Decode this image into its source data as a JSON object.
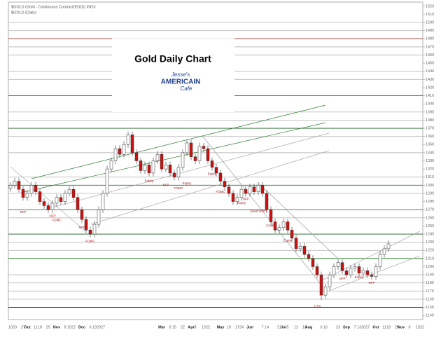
{
  "chart_data": {
    "type": "candlestick",
    "title": "Gold Daily Chart",
    "header": [
      "$GOLD (Gold - Continuous Contract(EOD)) INDX",
      "$GOLD (Daily)"
    ],
    "logo": [
      "Jesse's",
      "AMERICAIN",
      "Cafe"
    ],
    "up_color": "#ffffff",
    "down_color": "#cc1111",
    "outline_color": "#333333",
    "annotation_color": "#aa1111",
    "categories": [
      "10",
      "20",
      null,
      "27",
      "Oct",
      null,
      "11",
      "18",
      null,
      "25",
      null,
      "Nov",
      null,
      "8",
      "15",
      "22",
      null,
      "Dec",
      null,
      "6",
      "13",
      "20",
      "27",
      null,
      null,
      null,
      null,
      null,
      null,
      null,
      null,
      null,
      null,
      null,
      null,
      null,
      "Mar",
      null,
      "8",
      "15",
      null,
      "22",
      null,
      "Apr",
      "8",
      null,
      "15",
      "22",
      null,
      null,
      "May",
      null,
      "10",
      null,
      "17",
      "24",
      null,
      "Jun",
      null,
      null,
      "7",
      "14",
      null,
      null,
      "21",
      "Jul",
      "5",
      null,
      "12",
      null,
      "19",
      "Aug",
      null,
      null,
      "6",
      "16",
      null,
      null,
      "23",
      null,
      "Sep",
      null,
      "7",
      "13",
      "20",
      "27",
      null,
      "Oct",
      null,
      "11",
      "18",
      null,
      "25",
      "Nov",
      null,
      "8",
      null,
      "15",
      "22"
    ],
    "open": [
      1296,
      1300,
      1305,
      1295,
      1285,
      1290,
      1300,
      1292,
      1280,
      1275,
      1270,
      1278,
      1285,
      1280,
      1290,
      1295,
      1285,
      1270,
      1258,
      1245,
      1240,
      1252,
      1270,
      1290,
      1320,
      1330,
      1345,
      1338,
      1350,
      1362,
      1340,
      1330,
      1318,
      1325,
      1315,
      1330,
      1338,
      1320,
      1325,
      1315,
      1310,
      1322,
      1340,
      1352,
      1335,
      1330,
      1348,
      1345,
      1330,
      1322,
      1315,
      1305,
      1298,
      1290,
      1280,
      1285,
      1295,
      1290,
      1298,
      1292,
      1300,
      1290,
      1270,
      1255,
      1245,
      1248,
      1255,
      1245,
      1235,
      1222,
      1225,
      1215,
      1210,
      1200,
      1190,
      1165,
      1175,
      1190,
      1200,
      1205,
      1195,
      1190,
      1198,
      1200,
      1192,
      1195,
      1190,
      1188,
      1200,
      1215,
      1222,
      null,
      null,
      null,
      null,
      null,
      null,
      null,
      null
    ],
    "high": [
      1304,
      1309,
      1309,
      1299,
      1294,
      1304,
      1304,
      1296,
      1284,
      1279,
      1282,
      1289,
      1289,
      1294,
      1299,
      1299,
      1289,
      1274,
      1262,
      1249,
      1256,
      1274,
      1294,
      1324,
      1334,
      1349,
      1349,
      1354,
      1366,
      1366,
      1344,
      1334,
      1329,
      1329,
      1334,
      1342,
      1342,
      1329,
      1329,
      1319,
      1326,
      1344,
      1356,
      1356,
      1339,
      1352,
      1352,
      1349,
      1334,
      1326,
      1319,
      1309,
      1302,
      1294,
      1289,
      1299,
      1299,
      1302,
      1302,
      1304,
      1304,
      1294,
      1274,
      1259,
      1252,
      1259,
      1259,
      1249,
      1239,
      1229,
      1229,
      1219,
      1214,
      1204,
      1194,
      1179,
      1194,
      1204,
      1209,
      1209,
      1199,
      1202,
      1204,
      1204,
      1199,
      1199,
      1194,
      1204,
      1219,
      1226,
      1232,
      null,
      null,
      null,
      null,
      null,
      null,
      null,
      null
    ],
    "low": [
      1292,
      1296,
      1291,
      1281,
      1281,
      1286,
      1288,
      1276,
      1271,
      1266,
      1266,
      1274,
      1276,
      1276,
      1286,
      1281,
      1266,
      1254,
      1241,
      1236,
      1236,
      1248,
      1266,
      1286,
      1316,
      1326,
      1334,
      1334,
      1346,
      1336,
      1326,
      1314,
      1314,
      1311,
      1311,
      1326,
      1316,
      1316,
      1311,
      1306,
      1306,
      1318,
      1336,
      1331,
      1326,
      1326,
      1341,
      1326,
      1318,
      1311,
      1301,
      1294,
      1286,
      1276,
      1276,
      1281,
      1286,
      1286,
      1288,
      1288,
      1286,
      1266,
      1251,
      1241,
      1241,
      1244,
      1241,
      1231,
      1218,
      1218,
      1211,
      1206,
      1196,
      1186,
      1159,
      1161,
      1171,
      1186,
      1196,
      1191,
      1186,
      1186,
      1194,
      1188,
      1188,
      1186,
      1184,
      1184,
      1196,
      1211,
      1218,
      null,
      null,
      null,
      null,
      null,
      null,
      null,
      null
    ],
    "close": [
      1300,
      1305,
      1295,
      1285,
      1290,
      1300,
      1292,
      1280,
      1275,
      1270,
      1278,
      1285,
      1280,
      1290,
      1295,
      1285,
      1270,
      1258,
      1245,
      1240,
      1252,
      1270,
      1290,
      1320,
      1330,
      1345,
      1338,
      1350,
      1362,
      1340,
      1330,
      1318,
      1325,
      1315,
      1330,
      1338,
      1320,
      1325,
      1315,
      1310,
      1322,
      1340,
      1352,
      1335,
      1330,
      1348,
      1345,
      1330,
      1322,
      1315,
      1305,
      1298,
      1290,
      1280,
      1285,
      1295,
      1290,
      1298,
      1292,
      1300,
      1290,
      1270,
      1255,
      1245,
      1248,
      1255,
      1245,
      1235,
      1222,
      1225,
      1215,
      1210,
      1200,
      1190,
      1165,
      1175,
      1190,
      1200,
      1205,
      1195,
      1190,
      1198,
      1200,
      1192,
      1195,
      1190,
      1188,
      1200,
      1215,
      1222,
      1228,
      null,
      null,
      null,
      null,
      null,
      null,
      null,
      null
    ],
    "ylim": [
      1135,
      1525
    ],
    "yticks": [
      1140,
      1150,
      1160,
      1170,
      1180,
      1190,
      1200,
      1210,
      1220,
      1230,
      1240,
      1250,
      1260,
      1270,
      1280,
      1290,
      1300,
      1310,
      1320,
      1330,
      1340,
      1350,
      1360,
      1370,
      1380,
      1390,
      1400,
      1410,
      1420,
      1430,
      1440,
      1450,
      1460,
      1470,
      1480,
      1490,
      1500,
      1510,
      1520
    ],
    "levels": [
      {
        "value": 1500,
        "color": "#bbbbbb"
      },
      {
        "value": 1490,
        "color": "#bbbbbb"
      },
      {
        "value": 1480,
        "color": "#8b2a1a"
      },
      {
        "value": 1470,
        "color": "#bbbbbb"
      },
      {
        "value": 1460,
        "color": "#bbbbbb"
      },
      {
        "value": 1440,
        "color": "#bbbbbb"
      },
      {
        "value": 1430,
        "color": "#bbbbbb"
      },
      {
        "value": 1410,
        "color": "#2e7d32"
      },
      {
        "value": 1390,
        "color": "#bbbbbb"
      },
      {
        "value": 1380,
        "color": "#bbbbbb"
      },
      {
        "value": 1370,
        "color": "#1b5e20"
      },
      {
        "value": 1360,
        "color": "#bbbbbb"
      },
      {
        "value": 1340,
        "color": "#bbbbbb"
      },
      {
        "value": 1310,
        "color": "#bbbbbb"
      },
      {
        "value": 1300,
        "color": "#2e7d32"
      },
      {
        "value": 1290,
        "color": "#bbbbbb"
      },
      {
        "value": 1270,
        "color": "#2e7d32"
      },
      {
        "value": 1260,
        "color": "#bbbbbb"
      },
      {
        "value": 1240,
        "color": "#1b5e20"
      },
      {
        "value": 1230,
        "color": "#bbbbbb"
      },
      {
        "value": 1220,
        "color": "#bbbbbb"
      },
      {
        "value": 1210,
        "color": "#2e7d32"
      },
      {
        "value": 1190,
        "color": "#bbbbbb"
      },
      {
        "value": 1180,
        "color": "#bbbbbb"
      },
      {
        "value": 1170,
        "color": "#bbbbbb"
      },
      {
        "value": 1160,
        "color": "#bbbbbb"
      },
      {
        "value": 1150,
        "color": "#111111"
      }
    ],
    "annotations": [
      {
        "text": "NFP",
        "x": 3,
        "y": 1267
      },
      {
        "text": "NFP",
        "x": 10,
        "y": 1262
      },
      {
        "text": "FOMC",
        "x": 11,
        "y": 1257
      },
      {
        "text": "NFP",
        "x": 17,
        "y": 1248
      },
      {
        "text": "FOMC",
        "x": 19,
        "y": 1231
      },
      {
        "text": "Expiry",
        "x": 33,
        "y": 1305
      },
      {
        "text": "NFP",
        "x": 37,
        "y": 1300
      },
      {
        "text": "FOMC",
        "x": 40,
        "y": 1296
      },
      {
        "text": "Expiry",
        "x": 42,
        "y": 1302
      },
      {
        "text": "Expiry",
        "x": 48,
        "y": 1314
      },
      {
        "text": "FOMC",
        "x": 50,
        "y": 1292
      },
      {
        "text": "Expiry",
        "x": 55,
        "y": 1278
      },
      {
        "text": "NFP",
        "x": 56,
        "y": 1283
      },
      {
        "text": "Quad Witch",
        "x": 59,
        "y": 1268
      },
      {
        "text": "FOMC",
        "x": 62,
        "y": 1250
      },
      {
        "text": "Expiry",
        "x": 66,
        "y": 1232
      },
      {
        "text": "1159",
        "x": 73,
        "y": 1151
      },
      {
        "text": "NFP",
        "x": 79,
        "y": 1185
      },
      {
        "text": "Expiry",
        "x": 83,
        "y": 1187
      },
      {
        "text": "NFP",
        "x": 86,
        "y": 1180
      }
    ],
    "grid": false
  }
}
